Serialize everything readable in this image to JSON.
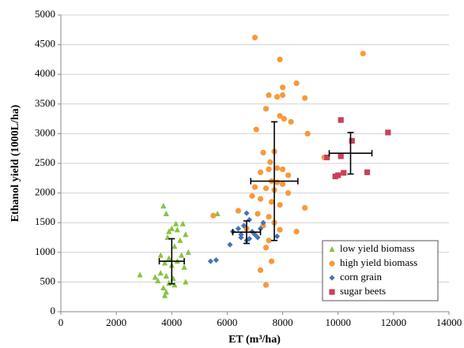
{
  "chart_data": {
    "type": "scatter",
    "x_label": "ET (m³/ha)",
    "y_label": "Ethanol yield (1000L/ha)",
    "xlim": [
      0,
      14000
    ],
    "ylim": [
      0,
      5000
    ],
    "xticks": [
      0,
      2000,
      4000,
      6000,
      8000,
      10000,
      12000,
      14000
    ],
    "yticks": [
      0,
      500,
      1000,
      1500,
      2000,
      2500,
      3000,
      3500,
      4000,
      4500,
      5000
    ],
    "grid": true,
    "legend": "bottom-right",
    "series": [
      {
        "name": "low yield biomass",
        "color": "#86c440",
        "marker": "triangle",
        "x": [
          3700,
          3800,
          4150,
          4400,
          4000,
          4200,
          3900,
          4500,
          3850,
          4300,
          4600,
          4100,
          3600,
          4350,
          3900,
          4200,
          3750,
          4000,
          4450,
          2850,
          3400,
          3600,
          3800,
          4050,
          3500,
          4500,
          3900,
          4100,
          3700,
          3800,
          3750,
          5650
        ],
        "y": [
          1780,
          1650,
          1480,
          1480,
          1400,
          1380,
          1350,
          1300,
          1250,
          1200,
          1000,
          1100,
          950,
          950,
          900,
          850,
          820,
          780,
          750,
          620,
          580,
          650,
          600,
          560,
          520,
          500,
          480,
          450,
          400,
          330,
          270,
          1650
        ],
        "error_bar": {
          "x": 4000,
          "y": 850,
          "xerr": 450,
          "yerr": 380
        }
      },
      {
        "name": "high yield biomass",
        "color": "#f7993a",
        "marker": "circle",
        "x": [
          7000,
          7900,
          10900,
          8500,
          7500,
          8000,
          7800,
          8000,
          7400,
          8300,
          8800,
          7900,
          7050,
          8050,
          8900,
          7700,
          7300,
          7550,
          9500,
          7500,
          7800,
          8000,
          8200,
          7200,
          7600,
          7800,
          8000,
          7000,
          7400,
          7700,
          8200,
          6900,
          7200,
          7600,
          7900,
          8800,
          6400,
          7100,
          7500,
          7700,
          7300,
          6700,
          7900,
          8500,
          5500,
          7500,
          7400,
          7600,
          7200,
          7400
        ],
        "y": [
          4620,
          4250,
          4350,
          3850,
          3650,
          3780,
          3620,
          3650,
          3420,
          3200,
          3600,
          3300,
          3070,
          3250,
          3000,
          2700,
          2680,
          2520,
          2600,
          2400,
          2420,
          2400,
          2300,
          2350,
          2200,
          2180,
          2150,
          2100,
          2080,
          2050,
          2000,
          1950,
          1900,
          1850,
          1800,
          1750,
          1700,
          1650,
          1600,
          1500,
          1450,
          1400,
          1380,
          1350,
          1620,
          1200,
          1080,
          850,
          700,
          450
        ],
        "error_bar": {
          "x": 7700,
          "y": 2200,
          "xerr": 850,
          "yerr": 1000
        }
      },
      {
        "name": "corn grain",
        "color": "#4a72b0",
        "marker": "diamond",
        "x": [
          5400,
          5600,
          6100,
          6400,
          6500,
          6600,
          6700,
          6800,
          6900,
          6500,
          6800,
          7000,
          7200,
          7100,
          6700,
          7300,
          7800,
          6200
        ],
        "y": [
          850,
          870,
          1130,
          1400,
          1300,
          1450,
          1660,
          1550,
          1350,
          1250,
          1230,
          1300,
          1400,
          1250,
          1200,
          1500,
          1270,
          1350
        ],
        "error_bar": {
          "x": 6700,
          "y": 1340,
          "xerr": 500,
          "yerr": 190
        }
      },
      {
        "name": "sugar beets",
        "color": "#c9405a",
        "marker": "square",
        "x": [
          10100,
          11800,
          10500,
          9600,
          10100,
          10000,
          10200,
          11050,
          9900
        ],
        "y": [
          3230,
          3020,
          2880,
          2600,
          2620,
          2300,
          2340,
          2350,
          2280
        ],
        "error_bar": {
          "x": 10450,
          "y": 2670,
          "xerr": 770,
          "yerr": 350
        }
      }
    ]
  }
}
